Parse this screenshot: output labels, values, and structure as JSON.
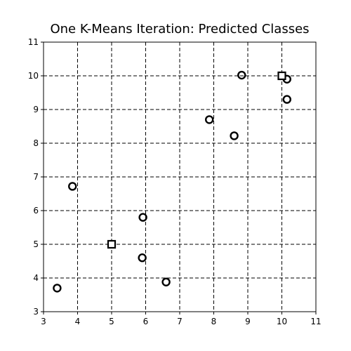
{
  "chart_data": {
    "type": "scatter",
    "title": "One K-Means Iteration: Predicted Classes",
    "xlabel": "",
    "ylabel": "",
    "xlim": [
      3,
      11
    ],
    "ylim": [
      3,
      11
    ],
    "xticks": [
      3,
      4,
      5,
      6,
      7,
      8,
      9,
      10,
      11
    ],
    "yticks": [
      3,
      4,
      5,
      6,
      7,
      8,
      9,
      10,
      11
    ],
    "grid": true,
    "grid_style": "dashed",
    "colors": {
      "background": "#ffffff",
      "grid": "#000000",
      "points": "#000000"
    },
    "series": [
      {
        "marker": "circle",
        "x": [
          3.4,
          3.85,
          5.9,
          5.92,
          6.6,
          7.87,
          8.6,
          8.82,
          10.15,
          10.15
        ],
        "y": [
          3.7,
          6.72,
          4.6,
          5.8,
          3.88,
          8.7,
          8.22,
          10.02,
          9.9,
          9.3
        ]
      },
      {
        "marker": "square",
        "x": [
          5.0,
          10.0
        ],
        "y": [
          5.0,
          10.0
        ]
      }
    ]
  }
}
